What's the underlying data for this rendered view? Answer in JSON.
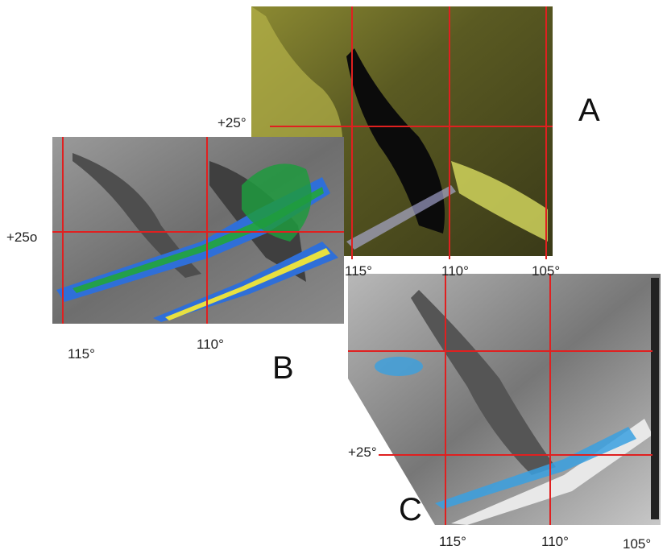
{
  "panels": [
    {
      "label": "A",
      "lat_labels": [
        "+25°"
      ],
      "lon_labels": [
        "115°",
        "110°",
        "105°"
      ]
    },
    {
      "label": "B",
      "lat_labels": [
        "+25o"
      ],
      "lon_labels": [
        "115°",
        "110°"
      ]
    },
    {
      "label": "C",
      "lat_labels": [
        "+25°"
      ],
      "lon_labels": [
        "115°",
        "110°",
        "105°"
      ]
    }
  ]
}
